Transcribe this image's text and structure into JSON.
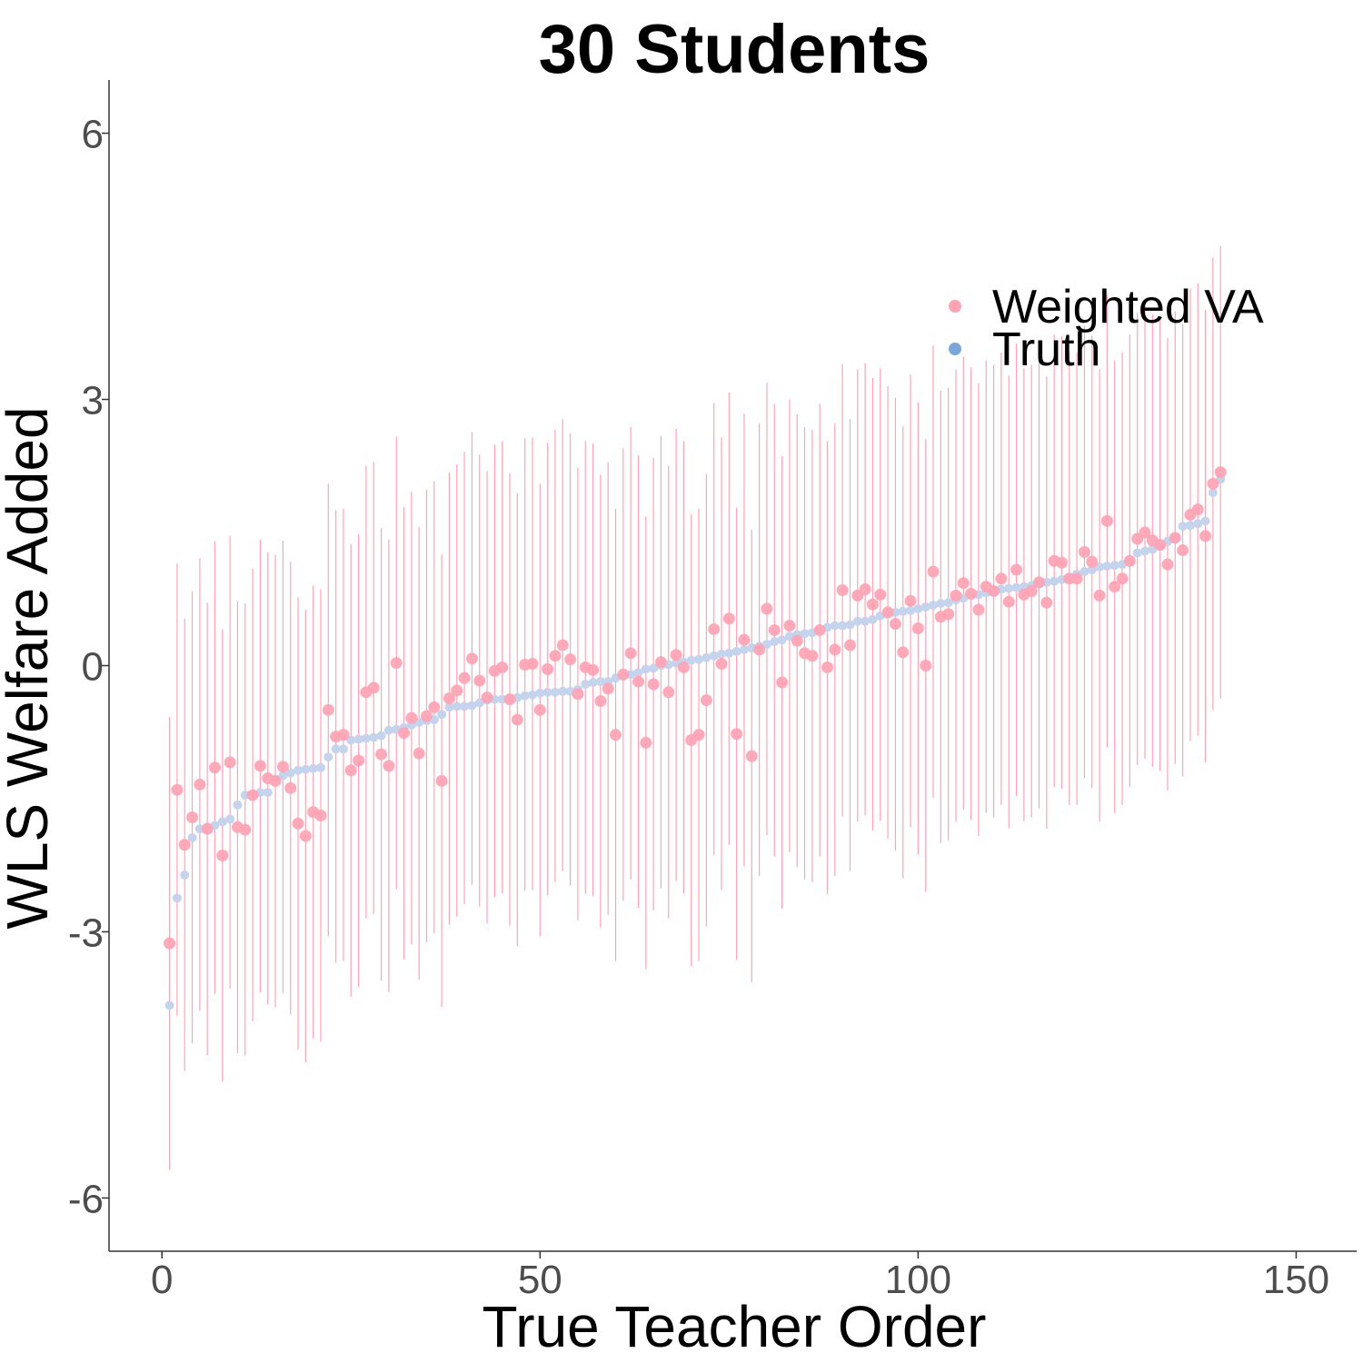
{
  "chart_data": {
    "type": "scatter",
    "title": "30 Students",
    "xlabel": "True Teacher Order",
    "ylabel": "WLS Welfare Added",
    "xlim": [
      -7,
      158
    ],
    "ylim": [
      -6.6,
      6.6
    ],
    "x_ticks": [
      0,
      50,
      100,
      150
    ],
    "y_ticks": [
      -6,
      -3,
      0,
      3,
      6
    ],
    "grid": false,
    "legend_position": "top-right",
    "error_bar_halfwidth": 2.55,
    "series": [
      {
        "name": "Weighted VA",
        "color": "#ffa3b4",
        "marker": "point",
        "has_error_bars": true,
        "x": [
          1,
          2,
          3,
          4,
          5,
          6,
          7,
          8,
          9,
          10,
          11,
          12,
          13,
          14,
          15,
          16,
          17,
          18,
          19,
          20,
          21,
          22,
          23,
          24,
          25,
          26,
          27,
          28,
          29,
          30,
          31,
          32,
          33,
          34,
          35,
          36,
          37,
          38,
          39,
          40,
          41,
          42,
          43,
          44,
          45,
          46,
          47,
          48,
          49,
          50,
          51,
          52,
          53,
          54,
          55,
          56,
          57,
          58,
          59,
          60,
          61,
          62,
          63,
          64,
          65,
          66,
          67,
          68,
          69,
          70,
          71,
          72,
          73,
          74,
          75,
          76,
          77,
          78,
          79,
          80,
          81,
          82,
          83,
          84,
          85,
          86,
          87,
          88,
          89,
          90,
          91,
          92,
          93,
          94,
          95,
          96,
          97,
          98,
          99,
          100,
          101,
          102,
          103,
          104,
          105,
          106,
          107,
          108,
          109,
          110,
          111,
          112,
          113,
          114,
          115,
          116,
          117,
          118,
          119,
          120,
          121,
          122,
          123,
          124,
          125,
          126,
          127,
          128,
          129,
          130,
          131,
          132,
          133,
          134,
          135,
          136,
          137,
          138,
          139,
          140
        ],
        "y": [
          -3.13,
          -1.4,
          -2.02,
          -1.71,
          -1.34,
          -1.84,
          -1.15,
          -2.14,
          -1.09,
          -1.82,
          -1.85,
          -1.46,
          -1.13,
          -1.27,
          -1.3,
          -1.14,
          -1.38,
          -1.78,
          -1.92,
          -1.65,
          -1.69,
          -0.5,
          -0.8,
          -0.78,
          -1.18,
          -1.07,
          -0.3,
          -0.25,
          -1.0,
          -1.13,
          0.03,
          -0.76,
          -0.59,
          -0.99,
          -0.57,
          -0.47,
          -1.3,
          -0.37,
          -0.28,
          -0.14,
          0.08,
          -0.17,
          -0.36,
          -0.06,
          -0.02,
          -0.38,
          -0.61,
          0.01,
          0.02,
          -0.5,
          -0.04,
          0.11,
          0.23,
          0.07,
          -0.32,
          -0.02,
          -0.05,
          -0.4,
          -0.26,
          -0.78,
          -0.1,
          0.14,
          -0.18,
          -0.87,
          -0.21,
          0.04,
          -0.3,
          0.12,
          -0.02,
          -0.84,
          -0.78,
          -0.39,
          0.41,
          0.02,
          0.53,
          -0.77,
          0.29,
          -1.02,
          0.18,
          0.64,
          0.4,
          -0.19,
          0.45,
          0.28,
          0.14,
          0.11,
          0.4,
          -0.02,
          0.18,
          0.85,
          0.23,
          0.79,
          0.86,
          0.69,
          0.8,
          0.6,
          0.47,
          0.15,
          0.73,
          0.42,
          0.0,
          1.06,
          0.55,
          0.58,
          0.79,
          0.93,
          0.81,
          0.63,
          0.89,
          0.84,
          0.98,
          0.72,
          1.08,
          0.8,
          0.84,
          0.94,
          0.71,
          1.18,
          1.16,
          0.98,
          0.98,
          1.28,
          1.17,
          0.79,
          1.63,
          0.89,
          0.98,
          1.18,
          1.43,
          1.5,
          1.41,
          1.36,
          1.14,
          1.44,
          1.3,
          1.7,
          1.76,
          1.46,
          2.05,
          2.18
        ]
      },
      {
        "name": "Truth",
        "color": "#c5d3ec",
        "legend_color": "#7aa6da",
        "marker": "point",
        "has_error_bars": false,
        "x": [
          1,
          2,
          3,
          4,
          5,
          6,
          7,
          8,
          9,
          10,
          11,
          12,
          13,
          14,
          15,
          16,
          17,
          18,
          19,
          20,
          21,
          22,
          23,
          24,
          25,
          26,
          27,
          28,
          29,
          30,
          31,
          32,
          33,
          34,
          35,
          36,
          37,
          38,
          39,
          40,
          41,
          42,
          43,
          44,
          45,
          46,
          47,
          48,
          49,
          50,
          51,
          52,
          53,
          54,
          55,
          56,
          57,
          58,
          59,
          60,
          61,
          62,
          63,
          64,
          65,
          66,
          67,
          68,
          69,
          70,
          71,
          72,
          73,
          74,
          75,
          76,
          77,
          78,
          79,
          80,
          81,
          82,
          83,
          84,
          85,
          86,
          87,
          88,
          89,
          90,
          91,
          92,
          93,
          94,
          95,
          96,
          97,
          98,
          99,
          100,
          101,
          102,
          103,
          104,
          105,
          106,
          107,
          108,
          109,
          110,
          111,
          112,
          113,
          114,
          115,
          116,
          117,
          118,
          119,
          120,
          121,
          122,
          123,
          124,
          125,
          126,
          127,
          128,
          129,
          130,
          131,
          132,
          133,
          134,
          135,
          136,
          137,
          138,
          139,
          140
        ],
        "y": [
          -3.83,
          -2.62,
          -2.36,
          -1.94,
          -1.84,
          -1.82,
          -1.8,
          -1.76,
          -1.73,
          -1.57,
          -1.46,
          -1.45,
          -1.43,
          -1.43,
          -1.28,
          -1.24,
          -1.21,
          -1.18,
          -1.17,
          -1.16,
          -1.15,
          -1.03,
          -0.94,
          -0.94,
          -0.84,
          -0.83,
          -0.82,
          -0.81,
          -0.79,
          -0.73,
          -0.72,
          -0.7,
          -0.67,
          -0.64,
          -0.62,
          -0.61,
          -0.55,
          -0.47,
          -0.46,
          -0.46,
          -0.45,
          -0.42,
          -0.39,
          -0.38,
          -0.38,
          -0.37,
          -0.36,
          -0.34,
          -0.33,
          -0.31,
          -0.3,
          -0.3,
          -0.29,
          -0.29,
          -0.27,
          -0.21,
          -0.19,
          -0.18,
          -0.18,
          -0.14,
          -0.12,
          -0.1,
          -0.08,
          -0.04,
          -0.03,
          0.0,
          0.01,
          0.03,
          0.04,
          0.06,
          0.07,
          0.09,
          0.11,
          0.13,
          0.14,
          0.16,
          0.18,
          0.2,
          0.22,
          0.24,
          0.27,
          0.29,
          0.33,
          0.35,
          0.36,
          0.37,
          0.4,
          0.43,
          0.45,
          0.45,
          0.46,
          0.5,
          0.5,
          0.52,
          0.56,
          0.58,
          0.6,
          0.61,
          0.62,
          0.64,
          0.66,
          0.68,
          0.7,
          0.71,
          0.74,
          0.76,
          0.79,
          0.8,
          0.82,
          0.84,
          0.86,
          0.87,
          0.88,
          0.89,
          0.9,
          0.92,
          0.94,
          0.95,
          0.97,
          1.0,
          1.03,
          1.06,
          1.08,
          1.11,
          1.12,
          1.13,
          1.14,
          1.17,
          1.27,
          1.29,
          1.31,
          1.34,
          1.4,
          1.43,
          1.57,
          1.58,
          1.6,
          1.63,
          1.95,
          2.1
        ]
      }
    ]
  }
}
